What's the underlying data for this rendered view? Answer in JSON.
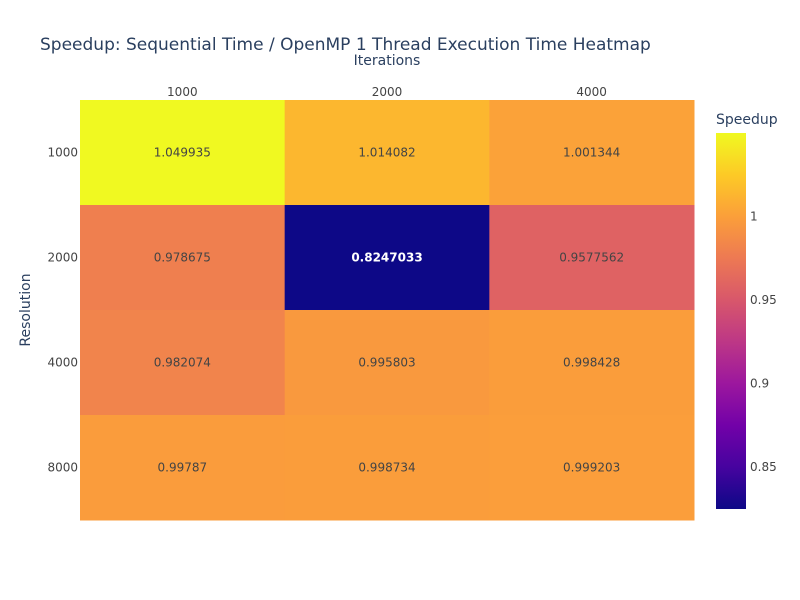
{
  "chart_data": {
    "type": "heatmap",
    "title": "Speedup: Sequential Time / OpenMP 1 Thread Execution Time Heatmap",
    "xlabel": "Iterations",
    "ylabel": "Resolution",
    "x_categories": [
      "1000",
      "2000",
      "4000"
    ],
    "y_categories": [
      "1000",
      "2000",
      "4000",
      "8000"
    ],
    "values": [
      [
        1.049935,
        1.014082,
        1.001344
      ],
      [
        0.978675,
        0.8247033,
        0.9577562
      ],
      [
        0.982074,
        0.995803,
        0.998428
      ],
      [
        0.99787,
        0.998734,
        0.999203
      ]
    ],
    "value_labels": [
      [
        "1.049935",
        "1.014082",
        "1.001344"
      ],
      [
        "0.978675",
        "0.8247033",
        "0.9577562"
      ],
      [
        "0.982074",
        "0.995803",
        "0.998428"
      ],
      [
        "0.99787",
        "0.998734",
        "0.999203"
      ]
    ],
    "x_axis_side": "top",
    "colorbar": {
      "title": "Speedup",
      "range": [
        0.8247033,
        1.049935
      ],
      "tick_values": [
        0.85,
        0.9,
        0.95,
        1
      ],
      "tick_labels": [
        "0.85",
        "0.9",
        "0.95",
        "1"
      ]
    },
    "colorscale": "plasma",
    "colorscale_stops": [
      "#0d0887",
      "#46039f",
      "#7201a8",
      "#9c179e",
      "#bd3786",
      "#d8576b",
      "#ed7953",
      "#fb9f3a",
      "#fdca26",
      "#f0f921"
    ]
  }
}
